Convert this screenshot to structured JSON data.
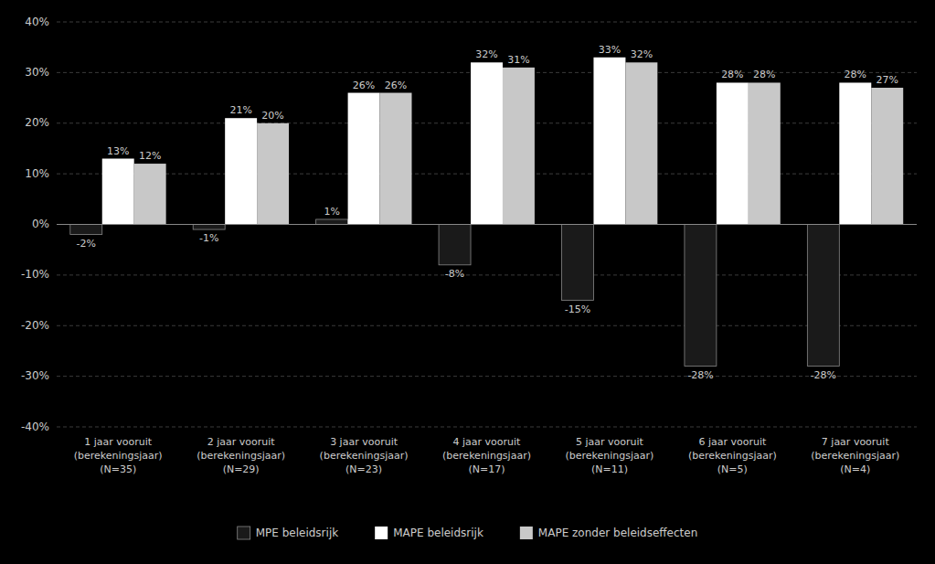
{
  "chart_data": {
    "type": "bar",
    "categories": [
      "1 jaar vooruit\n(berekeningsjaar)\n(N=35)",
      "2 jaar vooruit\n(berekeningsjaar)\n(N=29)",
      "3 jaar vooruit\n(berekeningsjaar)\n(N=23)",
      "4 jaar vooruit\n(berekeningsjaar)\n(N=17)",
      "5 jaar vooruit\n(berekeningsjaar)\n(N=11)",
      "6 jaar vooruit\n(berekeningsjaar)\n(N=5)",
      "7 jaar vooruit\n(berekeningsjaar)\n(N=4)"
    ],
    "series": [
      {
        "name": "MPE beleidsrijk",
        "color": "#1a1a1a",
        "values": [
          -2,
          -1,
          1,
          -8,
          -15,
          -28,
          -28
        ],
        "value_labels": [
          "-2%",
          "-1%",
          "1%",
          "-8%",
          "-15%",
          "-28%",
          "-28%"
        ]
      },
      {
        "name": "MAPE beleidsrijk",
        "color": "#ffffff",
        "values": [
          13,
          21,
          26,
          32,
          33,
          28,
          28
        ],
        "value_labels": [
          "13%",
          "21%",
          "26%",
          "32%",
          "33%",
          "28%",
          "28%"
        ]
      },
      {
        "name": "MAPE zonder beleidseffecten",
        "color": "#c8c8c8",
        "values": [
          12,
          20,
          26,
          31,
          32,
          28,
          27
        ],
        "value_labels": [
          "12%",
          "20%",
          "26%",
          "31%",
          "32%",
          "28%",
          "27%"
        ]
      }
    ],
    "ylim": [
      -40,
      40
    ],
    "yticks": [
      {
        "value": -40,
        "label": "-40%"
      },
      {
        "value": -30,
        "label": "-30%"
      },
      {
        "value": -20,
        "label": "-20%"
      },
      {
        "value": -10,
        "label": "-10%"
      },
      {
        "value": 0,
        "label": "0%"
      },
      {
        "value": 10,
        "label": "10%"
      },
      {
        "value": 20,
        "label": "20%"
      },
      {
        "value": 30,
        "label": "30%"
      },
      {
        "value": 40,
        "label": "40%"
      }
    ],
    "grid": true,
    "legend": "bottom",
    "data_labels": true
  }
}
